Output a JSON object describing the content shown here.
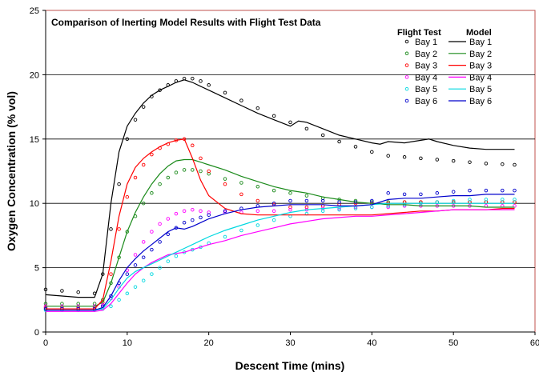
{
  "chart_data": {
    "type": "line",
    "title": "Comparison of Inerting Model Results with Flight Test Data",
    "xlabel": "Descent Time (mins)",
    "ylabel": "Oxygen Concentration (% vol)",
    "xlim": [
      0,
      60
    ],
    "ylim": [
      0,
      25
    ],
    "xticks": [
      0,
      10,
      20,
      30,
      40,
      50,
      60
    ],
    "yticks": [
      0,
      5,
      10,
      15,
      20,
      25
    ],
    "grid": "horizontal",
    "legend": {
      "placement": "top-right",
      "headers": [
        "Flight Test",
        "Model"
      ]
    },
    "series": [
      {
        "name": "Bay 1",
        "group": "Flight Test",
        "style": "markers",
        "color": "#000000",
        "x": [
          0,
          2,
          4,
          6,
          7,
          8,
          9,
          10,
          11,
          12,
          13,
          14,
          15,
          16,
          17,
          18,
          19,
          20,
          22,
          24,
          26,
          28,
          30,
          32,
          34,
          36,
          38,
          40,
          42,
          44,
          46,
          48,
          50,
          52,
          54,
          56,
          57.5
        ],
        "y": [
          3.3,
          3.2,
          3.1,
          3.0,
          4.5,
          8.0,
          11.5,
          15.0,
          16.5,
          17.5,
          18.3,
          18.8,
          19.2,
          19.5,
          19.7,
          19.7,
          19.5,
          19.2,
          18.6,
          18.0,
          17.4,
          16.8,
          16.3,
          15.8,
          15.3,
          14.8,
          14.4,
          14.0,
          13.7,
          13.6,
          13.5,
          13.4,
          13.3,
          13.2,
          13.1,
          13.05,
          13.0
        ]
      },
      {
        "name": "Bay 2",
        "group": "Flight Test",
        "style": "markers",
        "color": "#1a8a1a",
        "x": [
          0,
          2,
          4,
          6,
          7,
          8,
          9,
          10,
          11,
          12,
          13,
          14,
          15,
          16,
          17,
          18,
          19,
          20,
          22,
          24,
          26,
          28,
          30,
          32,
          34,
          36,
          38,
          40,
          42,
          44,
          46,
          48,
          50,
          52,
          54,
          56,
          57.5
        ],
        "y": [
          2.2,
          2.2,
          2.2,
          2.2,
          2.5,
          3.8,
          5.8,
          7.8,
          9.0,
          10.0,
          10.8,
          11.5,
          12.0,
          12.4,
          12.6,
          12.6,
          12.5,
          12.3,
          11.9,
          11.6,
          11.3,
          11.0,
          10.8,
          10.6,
          10.4,
          10.3,
          10.2,
          10.1,
          10.1,
          10.1,
          10.1,
          10.1,
          10.1,
          10.1,
          10.1,
          10.1,
          10.1
        ]
      },
      {
        "name": "Bay 3",
        "group": "Flight Test",
        "style": "markers",
        "color": "#ff0000",
        "x": [
          0,
          2,
          4,
          6,
          7,
          8,
          9,
          10,
          11,
          12,
          13,
          14,
          15,
          16,
          17,
          18,
          19,
          20,
          22,
          24,
          26,
          28,
          30,
          32,
          34,
          36,
          38,
          40,
          42,
          44,
          46,
          48,
          50,
          52,
          54,
          56,
          57.5
        ],
        "y": [
          1.9,
          1.9,
          1.9,
          1.9,
          2.3,
          4.5,
          8.0,
          10.5,
          12.0,
          13.0,
          13.8,
          14.3,
          14.6,
          14.9,
          15.0,
          14.5,
          13.5,
          12.5,
          11.5,
          10.7,
          10.2,
          9.9,
          9.7,
          9.7,
          9.8,
          9.9,
          10.0,
          10.0,
          10.0,
          10.1,
          10.1,
          10.1,
          10.1,
          10.1,
          10.1,
          10.1,
          10.1
        ]
      },
      {
        "name": "Bay 4",
        "group": "Flight Test",
        "style": "markers",
        "color": "#ff00ff",
        "x": [
          0,
          2,
          4,
          6,
          7,
          8,
          9,
          10,
          11,
          12,
          13,
          14,
          15,
          16,
          17,
          18,
          19,
          20,
          22,
          24,
          26,
          28,
          30,
          32,
          34,
          36,
          38,
          40,
          42,
          44,
          46,
          48,
          50,
          52,
          54,
          56,
          57.5
        ],
        "y": [
          2.0,
          2.0,
          2.0,
          2.0,
          2.1,
          2.6,
          3.5,
          4.8,
          6.0,
          7.0,
          7.8,
          8.4,
          8.8,
          9.2,
          9.4,
          9.5,
          9.4,
          9.3,
          9.3,
          9.3,
          9.4,
          9.4,
          9.5,
          9.5,
          9.6,
          9.6,
          9.7,
          9.7,
          9.7,
          9.8,
          9.8,
          9.8,
          9.8,
          9.8,
          9.8,
          9.8,
          9.8
        ]
      },
      {
        "name": "Bay 5",
        "group": "Flight Test",
        "style": "markers",
        "color": "#00d8e0",
        "x": [
          0,
          2,
          4,
          6,
          7,
          8,
          9,
          10,
          11,
          12,
          13,
          14,
          15,
          16,
          17,
          18,
          19,
          20,
          22,
          24,
          26,
          28,
          30,
          32,
          34,
          36,
          38,
          40,
          42,
          44,
          46,
          48,
          50,
          52,
          54,
          56,
          57.5
        ],
        "y": [
          1.7,
          1.7,
          1.7,
          1.7,
          1.8,
          2.0,
          2.5,
          3.0,
          3.5,
          4.0,
          4.5,
          5.0,
          5.5,
          5.9,
          6.2,
          6.4,
          6.6,
          6.9,
          7.4,
          7.9,
          8.3,
          8.7,
          9.0,
          9.2,
          9.4,
          9.5,
          9.6,
          9.7,
          9.8,
          9.9,
          10.0,
          10.1,
          10.2,
          10.3,
          10.3,
          10.3,
          10.3
        ]
      },
      {
        "name": "Bay 6",
        "group": "Flight Test",
        "style": "markers",
        "color": "#0000cc",
        "x": [
          0,
          2,
          4,
          6,
          7,
          8,
          9,
          10,
          11,
          12,
          13,
          14,
          15,
          16,
          17,
          18,
          19,
          20,
          22,
          24,
          26,
          28,
          30,
          32,
          34,
          36,
          38,
          40,
          42,
          44,
          46,
          48,
          50,
          52,
          54,
          56,
          57.5
        ],
        "y": [
          1.8,
          1.8,
          1.8,
          1.8,
          2.0,
          2.8,
          3.8,
          4.5,
          5.2,
          5.8,
          6.4,
          7.0,
          7.6,
          8.1,
          8.5,
          8.7,
          8.9,
          9.1,
          9.4,
          9.6,
          9.8,
          10.0,
          10.2,
          10.2,
          10.2,
          10.1,
          10.1,
          10.2,
          10.8,
          10.7,
          10.7,
          10.8,
          10.9,
          11.0,
          11.0,
          11.0,
          11.0
        ]
      },
      {
        "name": "Bay 1",
        "group": "Model",
        "style": "line",
        "color": "#000000",
        "x": [
          0,
          2,
          4,
          6,
          7,
          8,
          9,
          10,
          11,
          12,
          13,
          14,
          15,
          16,
          17,
          18,
          19,
          20,
          22,
          24,
          26,
          28,
          30,
          31,
          32,
          34,
          36,
          38,
          40,
          41,
          42,
          44,
          46,
          47,
          48,
          50,
          52,
          54,
          56,
          57.5
        ],
        "y": [
          2.9,
          2.8,
          2.7,
          2.7,
          4.5,
          10.0,
          14.0,
          16.0,
          17.0,
          17.8,
          18.4,
          18.8,
          19.1,
          19.4,
          19.6,
          19.4,
          19.1,
          18.8,
          18.2,
          17.6,
          17.0,
          16.5,
          16.0,
          16.4,
          16.3,
          15.8,
          15.3,
          15.0,
          14.7,
          14.6,
          14.8,
          14.7,
          14.9,
          15.0,
          14.8,
          14.5,
          14.3,
          14.2,
          14.2,
          14.2
        ]
      },
      {
        "name": "Bay 2",
        "group": "Model",
        "style": "line",
        "color": "#1a8a1a",
        "x": [
          0,
          2,
          4,
          6,
          7,
          8,
          9,
          10,
          11,
          12,
          13,
          14,
          15,
          16,
          17,
          18,
          19,
          20,
          22,
          24,
          26,
          28,
          30,
          32,
          34,
          36,
          38,
          40,
          42,
          44,
          46,
          48,
          50,
          52,
          54,
          56,
          57.5
        ],
        "y": [
          2.0,
          2.0,
          2.0,
          2.0,
          2.3,
          3.8,
          5.8,
          7.8,
          9.3,
          10.5,
          11.5,
          12.3,
          12.9,
          13.3,
          13.4,
          13.4,
          13.2,
          13.0,
          12.6,
          12.1,
          11.7,
          11.3,
          11.0,
          10.8,
          10.5,
          10.3,
          10.1,
          10.0,
          9.9,
          9.9,
          9.8,
          9.8,
          9.8,
          9.8,
          9.7,
          9.7,
          9.7
        ]
      },
      {
        "name": "Bay 3",
        "group": "Model",
        "style": "line",
        "color": "#ff0000",
        "x": [
          0,
          2,
          4,
          6,
          7,
          8,
          9,
          10,
          11,
          12,
          13,
          14,
          15,
          16,
          17,
          18,
          19,
          20,
          22,
          24,
          26,
          28,
          30,
          32,
          34,
          36,
          38,
          40,
          42,
          44,
          46,
          48,
          50,
          52,
          54,
          56,
          57.5
        ],
        "y": [
          1.8,
          1.8,
          1.8,
          1.8,
          2.5,
          5.5,
          9.0,
          11.5,
          12.8,
          13.5,
          14.0,
          14.4,
          14.7,
          14.9,
          15.0,
          13.5,
          11.8,
          10.6,
          9.6,
          9.2,
          9.1,
          9.1,
          9.1,
          9.1,
          9.1,
          9.1,
          9.1,
          9.1,
          9.2,
          9.3,
          9.4,
          9.4,
          9.5,
          9.5,
          9.5,
          9.6,
          9.6
        ]
      },
      {
        "name": "Bay 4",
        "group": "Model",
        "style": "line",
        "color": "#ff00ff",
        "x": [
          0,
          2,
          4,
          6,
          7,
          8,
          9,
          10,
          11,
          12,
          13,
          14,
          15,
          16,
          17,
          18,
          19,
          20,
          22,
          24,
          26,
          28,
          30,
          32,
          34,
          36,
          38,
          40,
          42,
          44,
          46,
          48,
          50,
          52,
          54,
          56,
          57.5
        ],
        "y": [
          1.6,
          1.6,
          1.6,
          1.6,
          1.7,
          2.2,
          3.0,
          3.8,
          4.5,
          5.0,
          5.4,
          5.7,
          6.0,
          6.1,
          6.2,
          6.4,
          6.6,
          6.8,
          7.1,
          7.5,
          7.8,
          8.1,
          8.4,
          8.6,
          8.8,
          8.9,
          9.0,
          9.0,
          9.1,
          9.2,
          9.3,
          9.4,
          9.5,
          9.5,
          9.5,
          9.5,
          9.5
        ]
      },
      {
        "name": "Bay 5",
        "group": "Model",
        "style": "line",
        "color": "#00d8e0",
        "x": [
          0,
          2,
          4,
          6,
          7,
          8,
          9,
          10,
          11,
          12,
          13,
          14,
          15,
          16,
          17,
          18,
          19,
          20,
          22,
          24,
          26,
          28,
          30,
          32,
          34,
          36,
          38,
          40,
          42,
          44,
          46,
          48,
          50,
          52,
          54,
          56,
          57.5
        ],
        "y": [
          1.7,
          1.7,
          1.7,
          1.7,
          1.8,
          2.5,
          3.4,
          4.2,
          4.7,
          5.0,
          5.3,
          5.6,
          5.9,
          6.2,
          6.5,
          6.8,
          7.1,
          7.4,
          7.9,
          8.3,
          8.7,
          9.0,
          9.3,
          9.5,
          9.6,
          9.7,
          9.8,
          9.9,
          10.0,
          10.0,
          10.0,
          10.0,
          10.0,
          10.0,
          10.0,
          10.0,
          10.0
        ]
      },
      {
        "name": "Bay 6",
        "group": "Model",
        "style": "line",
        "color": "#0000cc",
        "x": [
          0,
          2,
          4,
          6,
          7,
          8,
          9,
          10,
          11,
          12,
          13,
          14,
          15,
          16,
          17,
          18,
          19,
          20,
          22,
          24,
          26,
          28,
          30,
          32,
          34,
          36,
          38,
          40,
          42,
          44,
          46,
          48,
          50,
          52,
          54,
          56,
          57.5
        ],
        "y": [
          1.7,
          1.7,
          1.7,
          1.7,
          1.9,
          2.8,
          4.0,
          5.0,
          5.7,
          6.3,
          6.8,
          7.3,
          7.8,
          8.1,
          8.0,
          8.2,
          8.5,
          8.8,
          9.2,
          9.5,
          9.7,
          9.8,
          9.9,
          9.9,
          9.9,
          9.8,
          9.8,
          9.9,
          10.3,
          10.4,
          10.4,
          10.5,
          10.6,
          10.6,
          10.7,
          10.7,
          10.7
        ]
      }
    ]
  }
}
